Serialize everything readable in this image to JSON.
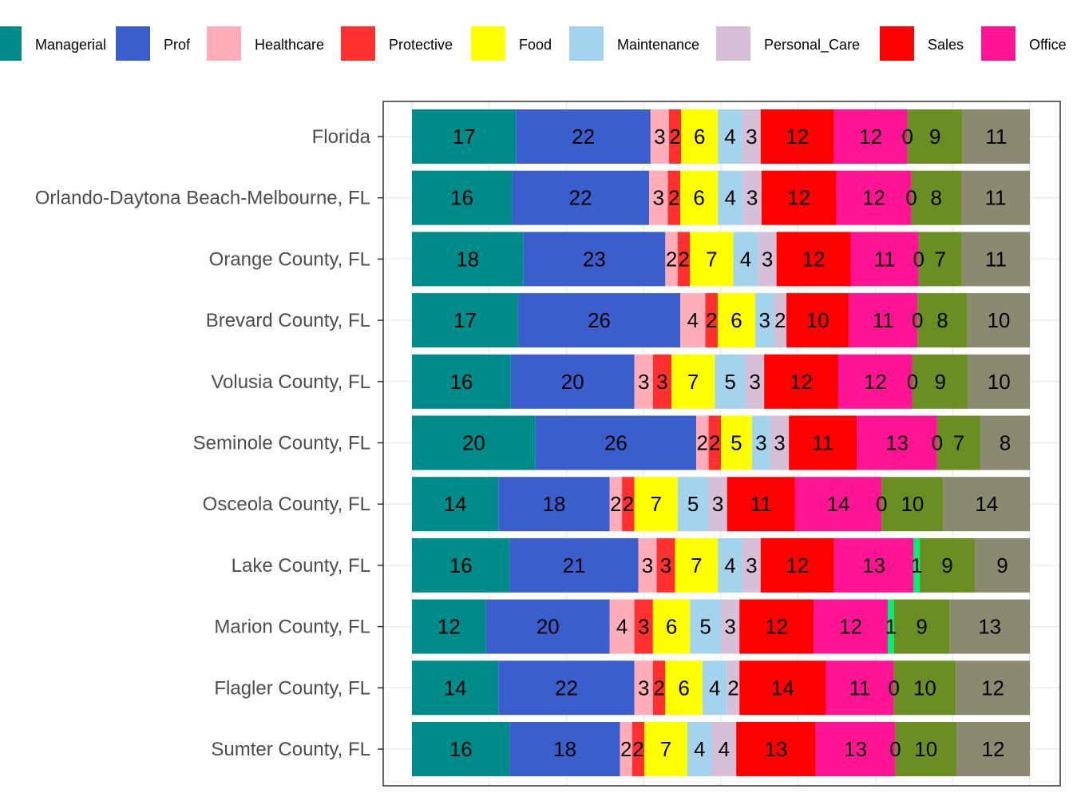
{
  "chart_data": {
    "type": "bar",
    "orientation": "horizontal",
    "stacked": true,
    "normalized": true,
    "legend_position": "top",
    "grid": true,
    "categories": [
      "Florida",
      "Orlando-Daytona Beach-Melbourne, FL",
      "Orange County, FL",
      "Brevard County, FL",
      "Volusia County, FL",
      "Seminole County, FL",
      "Osceola County, FL",
      "Lake County, FL",
      "Marion County, FL",
      "Flagler County, FL",
      "Sumter County, FL"
    ],
    "series": [
      {
        "name": "Managerial",
        "color": "#008b8b",
        "values": [
          17,
          16,
          18,
          17,
          16,
          20,
          14,
          16,
          12,
          14,
          16
        ]
      },
      {
        "name": "Prof",
        "color": "#3a5fcd",
        "values": [
          22,
          22,
          23,
          26,
          20,
          26,
          18,
          21,
          20,
          22,
          18
        ]
      },
      {
        "name": "Healthcare",
        "color": "#ffaeb9",
        "values": [
          3,
          3,
          2,
          4,
          3,
          2,
          2,
          3,
          4,
          3,
          2
        ]
      },
      {
        "name": "Protective",
        "color": "#ff3030",
        "values": [
          2,
          2,
          2,
          2,
          3,
          2,
          2,
          3,
          3,
          2,
          2
        ]
      },
      {
        "name": "Food",
        "color": "#ffff00",
        "values": [
          6,
          6,
          7,
          6,
          7,
          5,
          7,
          7,
          6,
          6,
          7
        ]
      },
      {
        "name": "Maintenance",
        "color": "#a4d3ee",
        "values": [
          4,
          4,
          4,
          3,
          5,
          3,
          5,
          4,
          5,
          4,
          4
        ]
      },
      {
        "name": "Personal_Care",
        "color": "#d8bfd8",
        "values": [
          3,
          3,
          3,
          2,
          3,
          3,
          3,
          3,
          3,
          2,
          4
        ]
      },
      {
        "name": "Sales",
        "color": "#ff0000",
        "values": [
          12,
          12,
          12,
          10,
          12,
          11,
          11,
          12,
          12,
          14,
          13
        ]
      },
      {
        "name": "Office",
        "color": "#ff1493",
        "values": [
          12,
          12,
          11,
          11,
          12,
          13,
          14,
          13,
          12,
          11,
          13
        ]
      },
      {
        "name": "",
        "color": "#00ee76",
        "values": [
          0,
          0,
          0,
          0,
          0,
          0,
          0,
          1,
          1,
          0,
          0
        ]
      },
      {
        "name": "",
        "color": "#6b8e23",
        "values": [
          9,
          8,
          7,
          8,
          9,
          7,
          10,
          9,
          9,
          10,
          10
        ]
      },
      {
        "name": "",
        "color": "#8b8970",
        "values": [
          11,
          11,
          11,
          10,
          10,
          8,
          14,
          9,
          13,
          12,
          12
        ]
      }
    ]
  }
}
